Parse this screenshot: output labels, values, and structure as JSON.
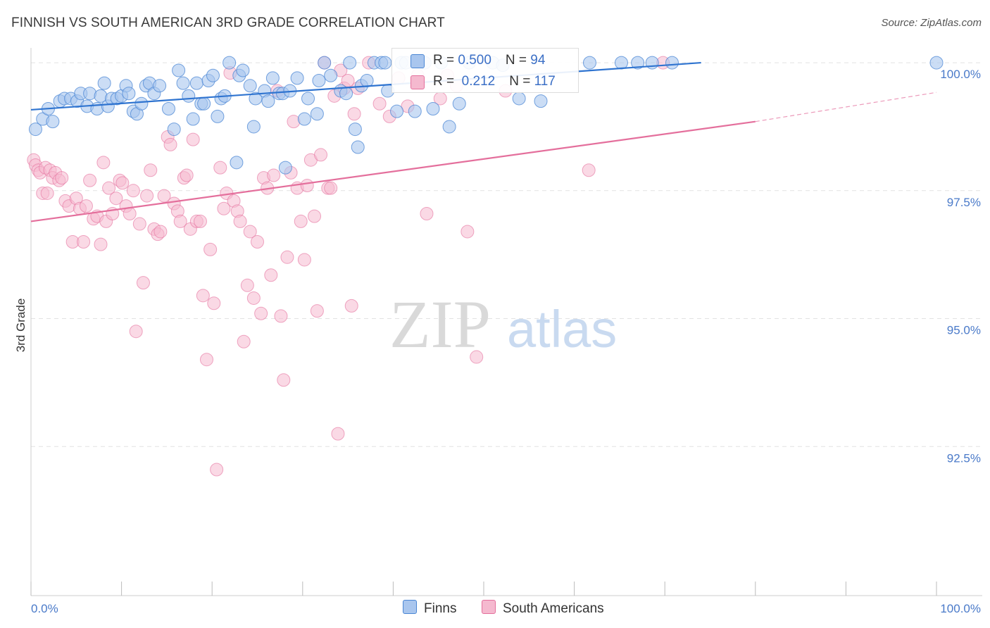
{
  "title": "FINNISH VS SOUTH AMERICAN 3RD GRADE CORRELATION CHART",
  "source": "Source: ZipAtlas.com",
  "watermark": {
    "zip": "ZIP",
    "atlas": "atlas"
  },
  "colors": {
    "finns": "#4a86d4",
    "finns_fill": "#a9c6ee",
    "south_americans": "#e46f9c",
    "south_americans_fill": "#f5b9cf",
    "axis_text": "#4a7ac9",
    "grid": "#e2e2e2"
  },
  "legend": {
    "rows": [
      {
        "r_label": "R = ",
        "r_value": "0.500",
        "n_label": "N = ",
        "n_value": "94"
      },
      {
        "r_label": "R = ",
        "r_value": " 0.212",
        "n_label": "N = ",
        "n_value": "117"
      }
    ],
    "bottom": [
      "Finns",
      "South Americans"
    ]
  },
  "chart_data": {
    "type": "scatter",
    "title": "FINNISH VS SOUTH AMERICAN 3RD GRADE CORRELATION CHART",
    "xlabel": "",
    "ylabel": "3rd Grade",
    "xlim": [
      0,
      100
    ],
    "ylim": [
      90.0,
      100.4
    ],
    "x_tick_labels": [
      "0.0%",
      "100.0%"
    ],
    "y_ticks": [
      100.0,
      97.5,
      95.0,
      92.5
    ],
    "y_tick_labels": [
      "100.0%",
      "97.5%",
      "95.0%",
      "92.5%"
    ],
    "grid": true,
    "legend_position": "top-center",
    "series": [
      {
        "name": "Finns",
        "r": 0.5,
        "n": 94,
        "trend": {
          "x0": 0,
          "y0": 99.08,
          "x1": 74,
          "y1": 100.0
        },
        "points": [
          [
            0.5,
            98.7
          ],
          [
            1.3,
            98.9
          ],
          [
            1.9,
            99.1
          ],
          [
            2.4,
            98.85
          ],
          [
            3.2,
            99.25
          ],
          [
            3.7,
            99.3
          ],
          [
            4.4,
            99.3
          ],
          [
            5.1,
            99.25
          ],
          [
            5.5,
            99.4
          ],
          [
            6.2,
            99.15
          ],
          [
            6.5,
            99.4
          ],
          [
            7.3,
            99.1
          ],
          [
            7.7,
            99.35
          ],
          [
            8.1,
            99.6
          ],
          [
            8.5,
            99.15
          ],
          [
            8.9,
            99.3
          ],
          [
            9.5,
            99.3
          ],
          [
            10,
            99.35
          ],
          [
            10.5,
            99.55
          ],
          [
            10.8,
            99.4
          ],
          [
            11.3,
            99.05
          ],
          [
            11.7,
            99.0
          ],
          [
            12.2,
            99.2
          ],
          [
            12.7,
            99.55
          ],
          [
            13.1,
            99.6
          ],
          [
            13.6,
            99.4
          ],
          [
            14.2,
            99.55
          ],
          [
            15.2,
            99.1
          ],
          [
            15.8,
            98.7
          ],
          [
            16.3,
            99.85
          ],
          [
            16.8,
            99.6
          ],
          [
            17.4,
            99.35
          ],
          [
            17.9,
            98.9
          ],
          [
            18.3,
            99.6
          ],
          [
            18.8,
            99.2
          ],
          [
            19.1,
            99.2
          ],
          [
            19.6,
            99.65
          ],
          [
            20.1,
            99.75
          ],
          [
            20.6,
            98.95
          ],
          [
            21,
            99.3
          ],
          [
            21.4,
            99.35
          ],
          [
            21.9,
            100.0
          ],
          [
            22.7,
            98.05
          ],
          [
            23,
            99.75
          ],
          [
            23.4,
            99.85
          ],
          [
            24.2,
            99.55
          ],
          [
            24.6,
            98.75
          ],
          [
            24.8,
            99.3
          ],
          [
            25.8,
            99.45
          ],
          [
            26.2,
            99.25
          ],
          [
            26.7,
            99.7
          ],
          [
            27.4,
            99.4
          ],
          [
            27.8,
            99.4
          ],
          [
            28.1,
            97.95
          ],
          [
            28.6,
            99.45
          ],
          [
            29.4,
            99.7
          ],
          [
            30.2,
            98.9
          ],
          [
            30.6,
            99.3
          ],
          [
            31.6,
            99.0
          ],
          [
            31.8,
            99.65
          ],
          [
            32.4,
            100.0
          ],
          [
            33.1,
            99.75
          ],
          [
            34.2,
            99.45
          ],
          [
            34.8,
            99.4
          ],
          [
            35.2,
            100.0
          ],
          [
            35.8,
            98.7
          ],
          [
            36.1,
            98.35
          ],
          [
            36.5,
            99.55
          ],
          [
            37.1,
            99.65
          ],
          [
            37.9,
            100.0
          ],
          [
            38.7,
            100.0
          ],
          [
            39.1,
            100.0
          ],
          [
            39.4,
            99.45
          ],
          [
            40.4,
            99.05
          ],
          [
            40.9,
            100.0
          ],
          [
            41.4,
            100.0
          ],
          [
            42.4,
            99.05
          ],
          [
            43.5,
            100.0
          ],
          [
            44.4,
            99.1
          ],
          [
            45.3,
            100.0
          ],
          [
            46.2,
            98.75
          ],
          [
            47.3,
            99.2
          ],
          [
            48.4,
            100.0
          ],
          [
            51,
            100.0
          ],
          [
            52.1,
            99.95
          ],
          [
            53.9,
            99.3
          ],
          [
            56.3,
            99.25
          ],
          [
            61.7,
            100.0
          ],
          [
            65.2,
            100.0
          ],
          [
            67,
            100.0
          ],
          [
            68.6,
            100.0
          ],
          [
            70.8,
            100.0
          ],
          [
            100,
            100.0
          ]
        ]
      },
      {
        "name": "South Americans",
        "r": 0.212,
        "n": 117,
        "trend": {
          "x0": 0,
          "y0": 96.9,
          "x1": 80,
          "y1": 98.85,
          "dash_x1": 100,
          "dash_y1": 99.42
        },
        "points": [
          [
            0.3,
            98.1
          ],
          [
            0.5,
            98.0
          ],
          [
            0.8,
            97.9
          ],
          [
            1.0,
            97.85
          ],
          [
            1.3,
            97.45
          ],
          [
            1.6,
            97.95
          ],
          [
            1.8,
            97.45
          ],
          [
            2.1,
            97.9
          ],
          [
            2.4,
            97.75
          ],
          [
            2.7,
            97.85
          ],
          [
            3.1,
            97.7
          ],
          [
            3.4,
            97.75
          ],
          [
            3.8,
            97.3
          ],
          [
            4.2,
            97.2
          ],
          [
            4.6,
            96.5
          ],
          [
            5.0,
            97.35
          ],
          [
            5.4,
            97.15
          ],
          [
            5.8,
            96.5
          ],
          [
            6.1,
            97.2
          ],
          [
            6.5,
            97.7
          ],
          [
            6.9,
            96.95
          ],
          [
            7.3,
            97.0
          ],
          [
            7.7,
            96.45
          ],
          [
            8.0,
            98.05
          ],
          [
            8.3,
            96.9
          ],
          [
            8.6,
            97.55
          ],
          [
            9.0,
            97.05
          ],
          [
            9.4,
            97.35
          ],
          [
            9.8,
            97.7
          ],
          [
            10.1,
            97.65
          ],
          [
            10.5,
            97.2
          ],
          [
            10.9,
            97.05
          ],
          [
            11.3,
            97.5
          ],
          [
            11.6,
            94.75
          ],
          [
            12.0,
            96.85
          ],
          [
            12.4,
            95.7
          ],
          [
            12.8,
            97.4
          ],
          [
            13.2,
            97.9
          ],
          [
            13.6,
            96.75
          ],
          [
            14.0,
            96.65
          ],
          [
            14.3,
            96.7
          ],
          [
            14.7,
            97.4
          ],
          [
            15.1,
            98.55
          ],
          [
            15.4,
            98.4
          ],
          [
            15.8,
            97.25
          ],
          [
            16.2,
            97.1
          ],
          [
            16.5,
            96.9
          ],
          [
            16.9,
            97.75
          ],
          [
            17.2,
            97.8
          ],
          [
            17.6,
            96.75
          ],
          [
            17.9,
            98.5
          ],
          [
            18.3,
            96.9
          ],
          [
            18.7,
            96.9
          ],
          [
            19.0,
            95.45
          ],
          [
            19.4,
            94.2
          ],
          [
            19.8,
            96.35
          ],
          [
            20.2,
            95.3
          ],
          [
            20.5,
            92.05
          ],
          [
            20.9,
            97.95
          ],
          [
            21.3,
            97.15
          ],
          [
            21.6,
            97.45
          ],
          [
            22.0,
            99.8
          ],
          [
            22.4,
            97.3
          ],
          [
            22.8,
            97.1
          ],
          [
            23.1,
            96.9
          ],
          [
            23.5,
            94.55
          ],
          [
            23.9,
            95.65
          ],
          [
            24.2,
            96.7
          ],
          [
            24.6,
            95.4
          ],
          [
            25.0,
            96.5
          ],
          [
            25.4,
            95.1
          ],
          [
            25.7,
            97.75
          ],
          [
            26.1,
            97.55
          ],
          [
            26.5,
            95.85
          ],
          [
            26.8,
            97.8
          ],
          [
            27.2,
            99.45
          ],
          [
            27.6,
            95.05
          ],
          [
            27.9,
            93.8
          ],
          [
            28.3,
            96.2
          ],
          [
            28.7,
            97.85
          ],
          [
            29.0,
            98.85
          ],
          [
            29.4,
            97.55
          ],
          [
            29.8,
            96.9
          ],
          [
            30.2,
            96.15
          ],
          [
            30.5,
            97.6
          ],
          [
            30.9,
            98.1
          ],
          [
            31.3,
            97.0
          ],
          [
            31.6,
            95.15
          ],
          [
            32.0,
            98.2
          ],
          [
            32.4,
            100.0
          ],
          [
            32.8,
            97.55
          ],
          [
            33.1,
            97.55
          ],
          [
            33.5,
            99.35
          ],
          [
            33.9,
            92.75
          ],
          [
            34.2,
            99.85
          ],
          [
            34.6,
            99.5
          ],
          [
            35.0,
            99.65
          ],
          [
            35.4,
            95.25
          ],
          [
            35.7,
            99.0
          ],
          [
            36.1,
            99.5
          ],
          [
            37.3,
            100.0
          ],
          [
            38.5,
            99.2
          ],
          [
            39.6,
            98.95
          ],
          [
            40.6,
            99.7
          ],
          [
            41.6,
            99.15
          ],
          [
            42.7,
            99.75
          ],
          [
            43.7,
            97.05
          ],
          [
            45.2,
            99.3
          ],
          [
            46.0,
            99.75
          ],
          [
            47.0,
            99.55
          ],
          [
            48.2,
            96.7
          ],
          [
            49.2,
            94.25
          ],
          [
            52.4,
            99.45
          ],
          [
            61.6,
            97.9
          ],
          [
            69.8,
            100.0
          ]
        ]
      }
    ]
  }
}
